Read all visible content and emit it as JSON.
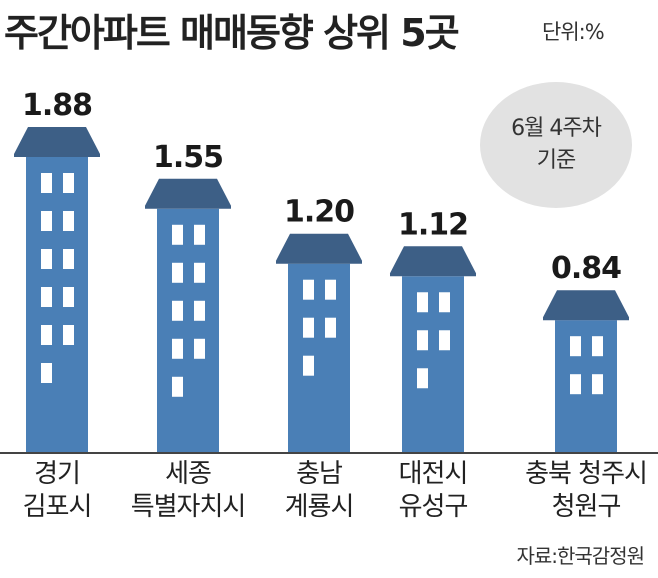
{
  "title": "주간아파트 매매동향 상위 5곳",
  "unit": "단위:%",
  "badge": {
    "line1": "6월 4주차",
    "line2": "기준"
  },
  "source": "자료:한국감정원",
  "colors": {
    "building": "#4a7fb6",
    "roof": "#3d5f86",
    "window": "#ffffff",
    "baseline": "#444444",
    "badge": "#e2e2e2"
  },
  "chart_data": {
    "type": "bar",
    "title": "주간아파트 매매동향 상위 5곳",
    "unit": "%",
    "categories": [
      [
        "경기",
        "김포시"
      ],
      [
        "세종",
        "특별자치시"
      ],
      [
        "충남",
        "계룡시"
      ],
      [
        "대전시",
        "유성구"
      ],
      [
        "충북 청주시",
        "청원구"
      ]
    ],
    "values": [
      1.88,
      1.55,
      1.2,
      1.12,
      0.84
    ],
    "value_labels": [
      "1.88",
      "1.55",
      "1.20",
      "1.12",
      "0.84"
    ]
  }
}
